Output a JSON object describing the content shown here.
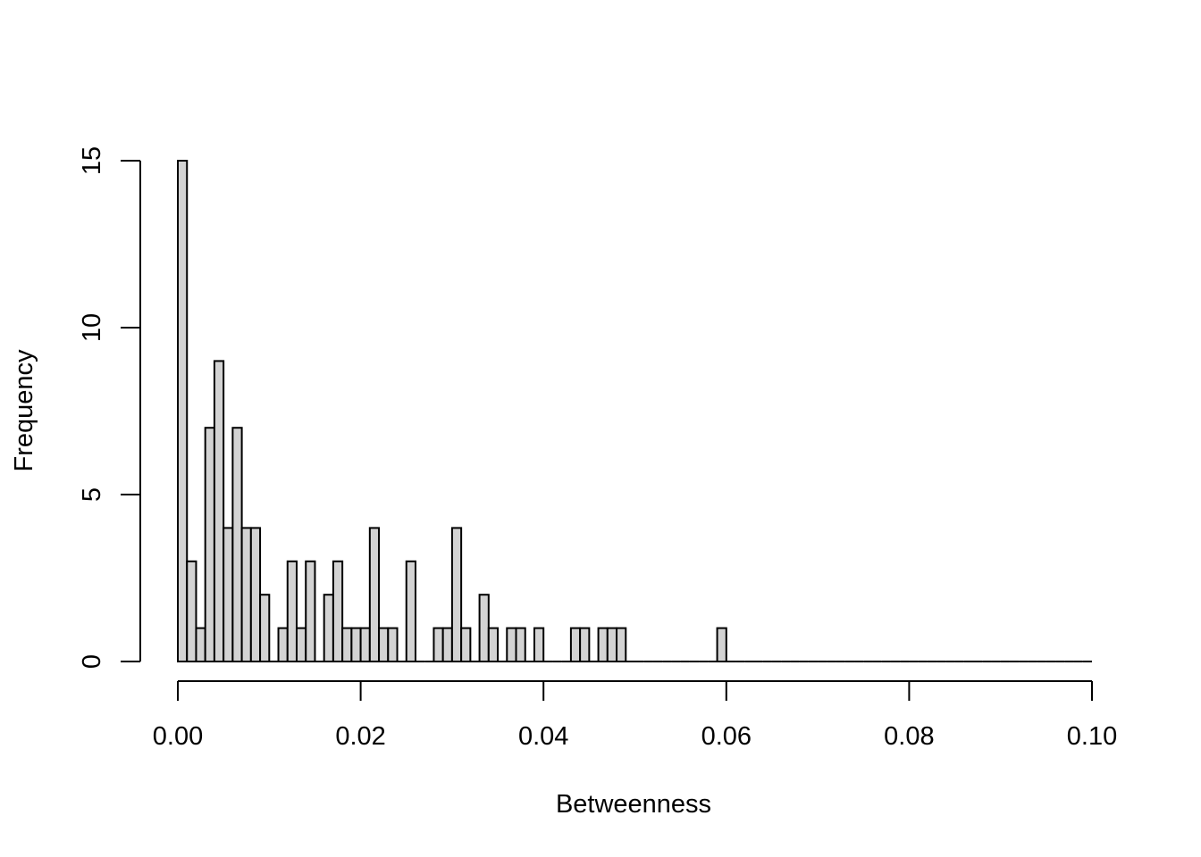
{
  "chart_data": {
    "type": "bar",
    "subtype": "histogram",
    "title": "",
    "xlabel": "Betweenness",
    "ylabel": "Frequency",
    "bin_width": 0.001,
    "xlim": [
      0,
      0.1
    ],
    "ylim": [
      0,
      15
    ],
    "x_ticks": [
      0,
      0.02,
      0.04,
      0.06,
      0.08,
      0.1
    ],
    "x_tick_labels": [
      "0.00",
      "0.02",
      "0.04",
      "0.06",
      "0.08",
      "0.10"
    ],
    "y_ticks": [
      0,
      5,
      10,
      15
    ],
    "y_tick_labels": [
      "0",
      "5",
      "10",
      "15"
    ],
    "bar_color": "#d3d3d3",
    "edge_color": "#000000",
    "grid": false,
    "legend": "none",
    "bin_starts": [
      0.0,
      0.001,
      0.002,
      0.003,
      0.004,
      0.005,
      0.006,
      0.007,
      0.008,
      0.009,
      0.01,
      0.011,
      0.012,
      0.013,
      0.014,
      0.015,
      0.016,
      0.017,
      0.018,
      0.019,
      0.02,
      0.021,
      0.022,
      0.023,
      0.024,
      0.025,
      0.026,
      0.027,
      0.028,
      0.029,
      0.03,
      0.031,
      0.032,
      0.033,
      0.034,
      0.035,
      0.036,
      0.037,
      0.038,
      0.039,
      0.04,
      0.041,
      0.042,
      0.043,
      0.044,
      0.045,
      0.046,
      0.047,
      0.048,
      0.049,
      0.05,
      0.051,
      0.052,
      0.053,
      0.054,
      0.055,
      0.056,
      0.057,
      0.058,
      0.059,
      0.06,
      0.061,
      0.062,
      0.063,
      0.064,
      0.065,
      0.066,
      0.067,
      0.068,
      0.069,
      0.07,
      0.071,
      0.072,
      0.073,
      0.074,
      0.075,
      0.076,
      0.077,
      0.078,
      0.079,
      0.08,
      0.081,
      0.082,
      0.083,
      0.084,
      0.085,
      0.086,
      0.087,
      0.088,
      0.089,
      0.09,
      0.091,
      0.092,
      0.093,
      0.094,
      0.095,
      0.096,
      0.097,
      0.098,
      0.099
    ],
    "values": [
      15,
      3,
      1,
      7,
      9,
      4,
      7,
      4,
      4,
      2,
      0,
      1,
      3,
      1,
      3,
      0,
      2,
      3,
      1,
      1,
      1,
      4,
      1,
      1,
      0,
      3,
      0,
      0,
      1,
      1,
      4,
      1,
      0,
      2,
      1,
      0,
      1,
      1,
      0,
      1,
      0,
      0,
      0,
      1,
      1,
      0,
      1,
      1,
      1,
      0,
      0,
      0,
      0,
      0,
      0,
      0,
      0,
      0,
      0,
      1,
      0,
      0,
      0,
      0,
      0,
      0,
      0,
      0,
      0,
      0,
      0,
      0,
      0,
      0,
      0,
      0,
      0,
      0,
      0,
      0,
      0,
      0,
      0,
      0,
      0,
      0,
      0,
      0,
      0,
      0,
      0,
      0,
      0,
      0,
      0,
      0,
      0,
      0,
      0,
      0
    ]
  }
}
